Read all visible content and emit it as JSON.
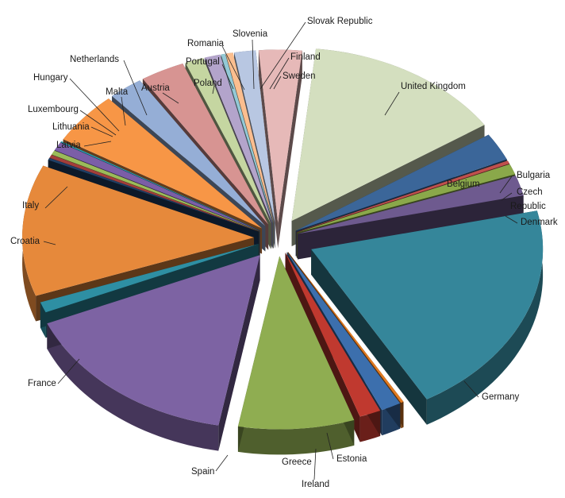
{
  "chart_data": {
    "type": "pie",
    "exploded": true,
    "three_d": true,
    "legend": "none",
    "title": "",
    "slices": [
      {
        "label": "United Kingdom",
        "value": 14.0,
        "color": "#d4dfbf"
      },
      {
        "label": "Belgium",
        "value": 2.6,
        "color": "#3b6699"
      },
      {
        "label": "Bulgaria",
        "value": 0.3,
        "color": "#c0504d"
      },
      {
        "label": "Czech Republic",
        "value": 1.0,
        "color": "#8aa84a"
      },
      {
        "label": "Denmark",
        "value": 1.9,
        "color": "#6e5a8f"
      },
      {
        "label": "Germany",
        "value": 20.3,
        "color": "#35869a"
      },
      {
        "label": "Estonia",
        "value": 0.2,
        "color": "#e07a21"
      },
      {
        "label": "Ireland",
        "value": 1.4,
        "color": "#3c6fad"
      },
      {
        "label": "Greece",
        "value": 1.5,
        "color": "#c0392f"
      },
      {
        "label": "Spain",
        "value": 8.1,
        "color": "#8fad51"
      },
      {
        "label": "France",
        "value": 15.7,
        "color": "#7d63a3"
      },
      {
        "label": "Croatia",
        "value": 1.0,
        "color": "#2e8fa3"
      },
      {
        "label": "Italy",
        "value": 12.3,
        "color": "#e6893b"
      },
      {
        "label": "Latvia",
        "value": 0.2,
        "color": "#1f3f66"
      },
      {
        "label": "Lithuania",
        "value": 0.3,
        "color": "#a33e3a"
      },
      {
        "label": "Luxembourg",
        "value": 0.4,
        "color": "#9bbb59"
      },
      {
        "label": "Hungary",
        "value": 0.8,
        "color": "#7b5ea7"
      },
      {
        "label": "Malta",
        "value": 0.1,
        "color": "#2aa3b8"
      },
      {
        "label": "Netherlands",
        "value": 4.9,
        "color": "#f79646"
      },
      {
        "label": "Austria",
        "value": 2.4,
        "color": "#95aed6"
      },
      {
        "label": "Poland",
        "value": 3.1,
        "color": "#d79492"
      },
      {
        "label": "Portugal",
        "value": 1.3,
        "color": "#c5d6a1"
      },
      {
        "label": "Romania",
        "value": 1.1,
        "color": "#b3a4cb"
      },
      {
        "label": "Slovenia",
        "value": 0.3,
        "color": "#93c9d6"
      },
      {
        "label": "Slovak Republic",
        "value": 0.5,
        "color": "#fbbe8f"
      },
      {
        "label": "Finland",
        "value": 1.5,
        "color": "#b8c7e2"
      },
      {
        "label": "Sweden",
        "value": 3.0,
        "color": "#e6b9b8"
      }
    ]
  }
}
